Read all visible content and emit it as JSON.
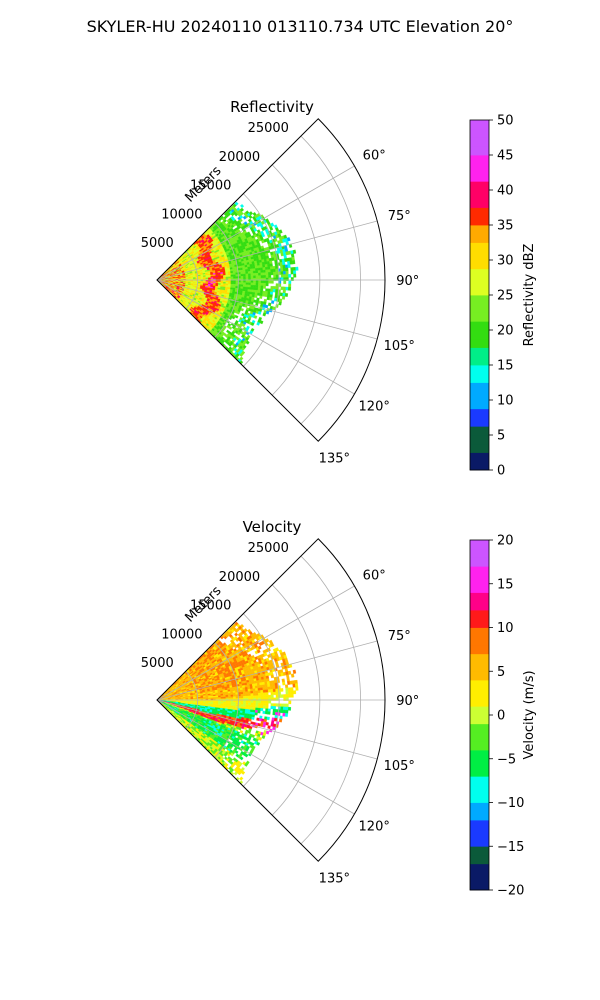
{
  "figure": {
    "suptitle": "SKYLER-HU  20240110  013110.734 UTC Elevation 20°"
  },
  "chart_data": [
    {
      "type": "heatmap",
      "projection": "polar-sector",
      "title": "Reflectivity",
      "range_axis_label": "Meters",
      "range_ticks": [
        "5000",
        "10000",
        "15000",
        "20000",
        "25000"
      ],
      "azimuth_ticks": [
        "60°",
        "75°",
        "90°",
        "105°",
        "120°",
        "135°"
      ],
      "sector_deg": [
        45,
        135
      ],
      "range_max_m": 28000,
      "colorbar": {
        "label": "Reflectivity dBZ",
        "range": [
          0,
          50
        ],
        "ticks": [
          "0",
          "5",
          "10",
          "15",
          "20",
          "25",
          "30",
          "35",
          "40",
          "45",
          "50"
        ]
      },
      "grid": true,
      "colors": {
        "dominant": "#44ee22",
        "core": "#ff1a1a",
        "mid": "#ffee00",
        "low": "#00ffdd",
        "peak": "#cc33ff"
      }
    },
    {
      "type": "heatmap",
      "projection": "polar-sector",
      "title": "Velocity",
      "range_axis_label": "Meters",
      "range_ticks": [
        "5000",
        "10000",
        "15000",
        "20000",
        "25000"
      ],
      "azimuth_ticks": [
        "60°",
        "75°",
        "90°",
        "105°",
        "120°",
        "135°"
      ],
      "sector_deg": [
        45,
        135
      ],
      "range_max_m": 28000,
      "colorbar": {
        "label": "Velocity (m/s)",
        "range": [
          -20,
          20
        ],
        "ticks": [
          "-20",
          "-15",
          "-10",
          "-5",
          "0",
          "5",
          "10",
          "15",
          "20"
        ]
      },
      "grid": true,
      "colors": {
        "positive": "#ff1a1a",
        "zero": "#ffee00",
        "negative": "#00ffdd",
        "strong_positive": "#ee22ee",
        "green": "#44ee22"
      }
    }
  ]
}
